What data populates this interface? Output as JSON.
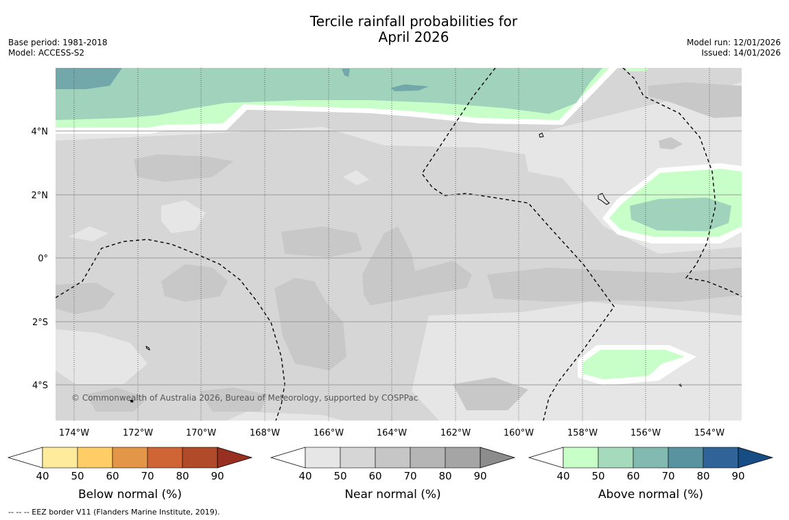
{
  "header": {
    "title_line1": "Tercile rainfall probabilities for",
    "title_line2": "April 2026",
    "base_period": "Base period: 1981-2018",
    "model": "Model: ACCESS-S2",
    "model_run": "Model run: 12/01/2026",
    "issued": "Issued: 14/01/2026"
  },
  "map": {
    "lat_labels": [
      "4°N",
      "2°N",
      "0°",
      "2°S",
      "4°S"
    ],
    "lon_labels": [
      "174°W",
      "172°W",
      "170°W",
      "168°W",
      "166°W",
      "164°W",
      "162°W",
      "160°W",
      "158°W",
      "156°W",
      "154°W"
    ],
    "copyright": "© Commonwealth of Australia 2026, Bureau of Meteorology, supported by COSPPac",
    "colors": {
      "near_40": "#e6e6e6",
      "near_50": "#d6d6d6",
      "near_60": "#c8c8c8",
      "above_40": "#c8ffc8",
      "above_50": "#a0d2bc",
      "above_60": "#72a8aa"
    }
  },
  "colorbars": [
    {
      "label": "Below normal (%)",
      "ticks": [
        "40",
        "50",
        "60",
        "70",
        "80",
        "90"
      ],
      "colors": [
        "#ffeb9c",
        "#ffcc66",
        "#e39647",
        "#cf6535",
        "#b04a28",
        "#973020"
      ]
    },
    {
      "label": "Near normal (%)",
      "ticks": [
        "40",
        "50",
        "60",
        "70",
        "80",
        "90"
      ],
      "colors": [
        "#e6e6e6",
        "#d6d6d6",
        "#c6c6c6",
        "#b5b5b5",
        "#a5a5a5",
        "#8c8c8c"
      ]
    },
    {
      "label": "Above normal (%)",
      "ticks": [
        "40",
        "50",
        "60",
        "70",
        "80",
        "90"
      ],
      "colors": [
        "#c8ffc8",
        "#a6dabd",
        "#82b9b0",
        "#5a93a0",
        "#306498",
        "#174d85"
      ]
    }
  ],
  "footnote": "--  --  -- EEZ border V11 (Flanders Marine Institute, 2019)."
}
